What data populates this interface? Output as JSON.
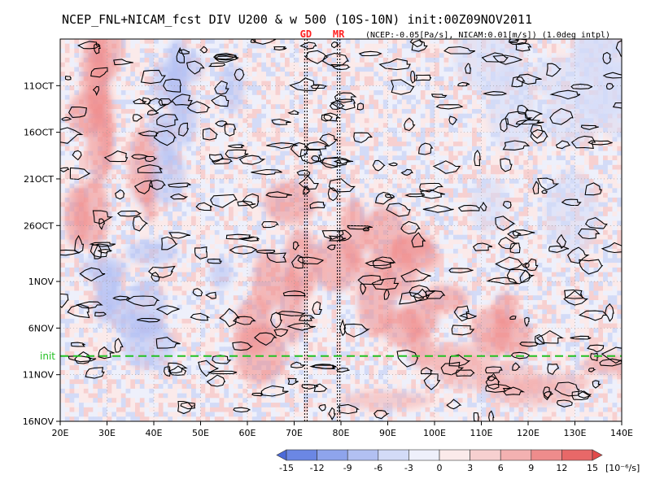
{
  "chart_data": {
    "type": "heatmap",
    "title": "NCEP_FNL+NICAM_fcst DIV U200 & w 500 (10S-10N) init:00Z09NOV2011",
    "subtitle": "(NCEP:-0.05[Pa/s], NICAM:0.01[m/s]) (1.0deg intpl)",
    "markers": [
      {
        "label": "GD",
        "lon": 72.5
      },
      {
        "label": "MR",
        "lon": 79.5
      }
    ],
    "init_label": "init",
    "init_color": "#22c022",
    "x_ticks": [
      "20E",
      "30E",
      "40E",
      "50E",
      "60E",
      "70E",
      "80E",
      "90E",
      "100E",
      "110E",
      "120E",
      "130E",
      "140E"
    ],
    "x_values": [
      20,
      30,
      40,
      50,
      60,
      70,
      80,
      90,
      100,
      110,
      120,
      130,
      140
    ],
    "xlim": [
      20,
      140
    ],
    "y_ticks": [
      "11OCT",
      "16OCT",
      "21OCT",
      "26OCT",
      "1NOV",
      "6NOV",
      "11NOV",
      "16NOV"
    ],
    "y_values": [
      5,
      10,
      15,
      20,
      26,
      31,
      36,
      41
    ],
    "ylim": [
      0,
      41
    ],
    "init_day": 34,
    "colorbar": {
      "ticks": [
        "-15",
        "-12",
        "-9",
        "-6",
        "-3",
        "0",
        "3",
        "6",
        "9",
        "12",
        "15"
      ],
      "unit": "[10⁻⁶/s]",
      "colors": [
        "#4b6ad8",
        "#6b87e4",
        "#8ea4ec",
        "#b2c0f2",
        "#d3dbf7",
        "#eef0fb",
        "#fbeaea",
        "#f7d0d0",
        "#f3b1b1",
        "#ee8c8c",
        "#e86868",
        "#e24a4a"
      ]
    },
    "bands": [
      {
        "lon_start": 20,
        "lon_end": 40,
        "day_start": 0,
        "day_end": 20,
        "value": 9
      },
      {
        "lon_start": 40,
        "lon_end": 60,
        "day_start": 0,
        "day_end": 15,
        "value": -9
      },
      {
        "lon_start": 60,
        "lon_end": 90,
        "day_start": 15,
        "day_end": 34,
        "value": 9
      },
      {
        "lon_start": 25,
        "lon_end": 55,
        "day_start": 20,
        "day_end": 33,
        "value": -9
      },
      {
        "lon_start": 90,
        "lon_end": 120,
        "day_start": 22,
        "day_end": 34,
        "value": 9
      },
      {
        "lon_start": 100,
        "lon_end": 140,
        "day_start": 0,
        "day_end": 22,
        "value": -6
      },
      {
        "lon_start": 80,
        "lon_end": 140,
        "day_start": 34,
        "day_end": 41,
        "value": 6
      }
    ]
  }
}
